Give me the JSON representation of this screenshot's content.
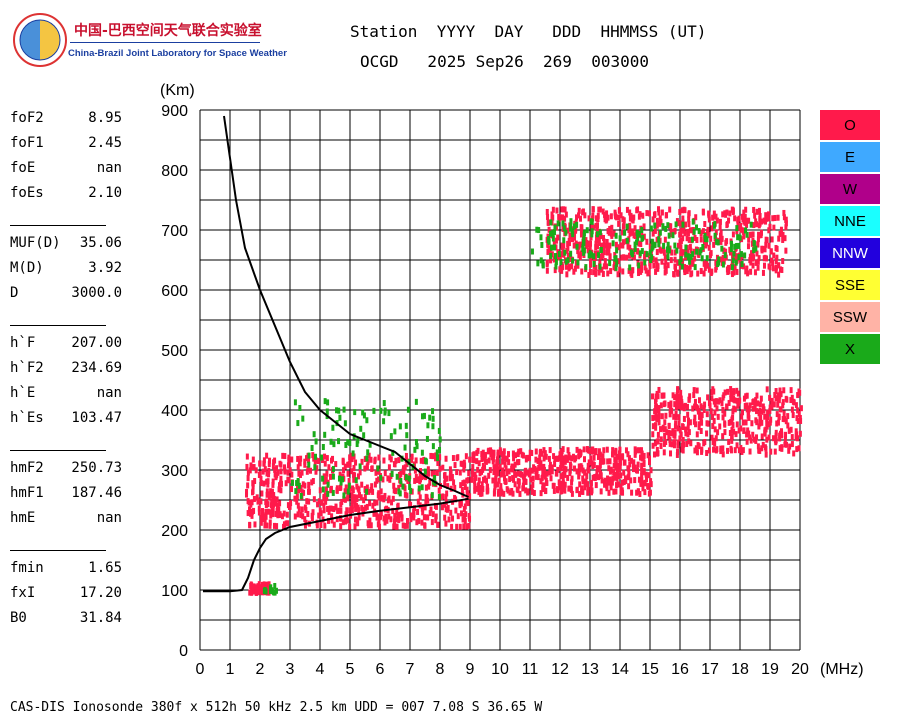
{
  "logo": {
    "cn": "中国-巴西空间天气联合实验室",
    "en": "China-Brazil Joint Laboratory for Space Weather"
  },
  "header": {
    "line1": "Station  YYYY  DAY   DDD  HHMMSS (UT)",
    "line2": "OCGD   2025 Sep26  269  003000"
  },
  "params": [
    {
      "name": "foF2",
      "value": "8.95"
    },
    {
      "name": "foF1",
      "value": "2.45"
    },
    {
      "name": "foE",
      "value": "nan"
    },
    {
      "name": "foEs",
      "value": "2.10"
    },
    {
      "name": "MUF(D)",
      "value": "35.06"
    },
    {
      "name": "M(D)",
      "value": "3.92"
    },
    {
      "name": "D",
      "value": "3000.0"
    },
    {
      "name": "h`F",
      "value": "207.00"
    },
    {
      "name": "h`F2",
      "value": "234.69"
    },
    {
      "name": "h`E",
      "value": "nan"
    },
    {
      "name": "h`Es",
      "value": "103.47"
    },
    {
      "name": "hmF2",
      "value": "250.73"
    },
    {
      "name": "hmF1",
      "value": "187.46"
    },
    {
      "name": "hmE",
      "value": "nan"
    },
    {
      "name": "fmin",
      "value": "1.65"
    },
    {
      "name": "fxI",
      "value": "17.20"
    },
    {
      "name": "B0",
      "value": "31.84"
    }
  ],
  "legend": [
    {
      "label": "O",
      "color": "#ff1a4b"
    },
    {
      "label": "E",
      "color": "#3fa9ff"
    },
    {
      "label": "W",
      "color": "#b0008a"
    },
    {
      "label": "NNE",
      "color": "#1affff"
    },
    {
      "label": "NNW",
      "color": "#2200dd"
    },
    {
      "label": "SSE",
      "color": "#ffff33"
    },
    {
      "label": "SSW",
      "color": "#ffb3a6"
    },
    {
      "label": "X",
      "color": "#1aaa1a"
    }
  ],
  "footer": "CAS-DIS Ionosonde 380f x 512h 50 kHz 2.5 km UDD = 007 7.08 S 36.65 W",
  "chart_data": {
    "type": "scatter",
    "xlabel": "(MHz)",
    "ylabel": "(Km)",
    "xlim": [
      0,
      20
    ],
    "ylim": [
      0,
      900
    ],
    "x_ticks": [
      0,
      1,
      2,
      3,
      4,
      5,
      6,
      7,
      8,
      9,
      10,
      11,
      12,
      13,
      14,
      15,
      16,
      17,
      18,
      19,
      20
    ],
    "y_ticks": [
      0,
      100,
      200,
      300,
      400,
      500,
      600,
      700,
      800,
      900
    ],
    "grid": true,
    "legend_placement": "right",
    "profile_curve": {
      "x": [
        0.8,
        1.0,
        1.2,
        1.5,
        2.0,
        2.5,
        3.0,
        3.5,
        4.0,
        4.5,
        5.0,
        5.5,
        6.0,
        6.5,
        7.0,
        7.5,
        8.0,
        8.5,
        8.95
      ],
      "y": [
        890,
        820,
        750,
        670,
        600,
        540,
        480,
        430,
        400,
        380,
        360,
        350,
        340,
        330,
        310,
        290,
        275,
        265,
        255
      ]
    },
    "lower_curve": {
      "x": [
        0.1,
        0.5,
        1.0,
        1.4,
        1.6,
        1.8,
        2.0,
        2.2,
        2.5,
        3.0,
        4.0,
        5.0,
        6.0,
        7.0,
        8.0,
        8.95
      ],
      "y": [
        98,
        98,
        98,
        100,
        120,
        150,
        170,
        185,
        195,
        205,
        215,
        225,
        232,
        238,
        244,
        252
      ]
    },
    "trace_regions": [
      {
        "polarization": "O",
        "x_range": [
          1.5,
          9.0
        ],
        "y_range": [
          210,
          330
        ]
      },
      {
        "polarization": "O",
        "x_range": [
          9.0,
          15.0
        ],
        "y_range": [
          265,
          340
        ]
      },
      {
        "polarization": "O",
        "x_range": [
          15.0,
          20.0
        ],
        "y_range": [
          330,
          440
        ]
      },
      {
        "polarization": "O",
        "x_range": [
          1.6,
          2.3
        ],
        "y_range": [
          100,
          115
        ]
      },
      {
        "polarization": "O",
        "x_range": [
          11.5,
          19.5
        ],
        "y_range": [
          630,
          740
        ]
      },
      {
        "polarization": "X",
        "x_range": [
          2.0,
          2.5
        ],
        "y_range": [
          100,
          115
        ]
      },
      {
        "polarization": "X",
        "x_range": [
          11.0,
          18.5
        ],
        "y_range": [
          640,
          720
        ]
      },
      {
        "polarization": "X",
        "x_range": [
          3.0,
          8.0
        ],
        "y_range": [
          260,
          420
        ]
      }
    ]
  }
}
